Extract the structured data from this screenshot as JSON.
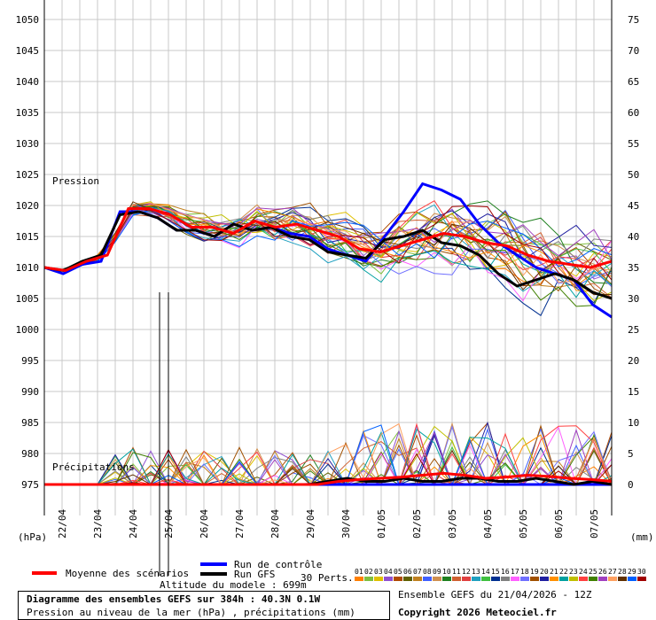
{
  "chart_data": {
    "type": "line",
    "title": "Diagramme des ensembles GEFS sur 384h : 40.3N 0.1W",
    "subtitle": "Pression au niveau de la mer (hPa) , précipitations (mm)",
    "ylabel_left": "(hPa)",
    "ylabel_right": "(mm)",
    "pressure_label": "Pression",
    "precip_label": "Précipitations",
    "y_left_ticks": [
      1050,
      1045,
      1040,
      1035,
      1030,
      1025,
      1020,
      1015,
      1010,
      1005,
      1000,
      995,
      990,
      985,
      980,
      975
    ],
    "y_right_ticks": [
      75,
      70,
      65,
      60,
      55,
      50,
      45,
      40,
      35,
      30,
      25,
      20,
      15,
      10,
      5,
      0
    ],
    "ylim": [
      970,
      1050
    ],
    "x_labels": [
      "22/04",
      "23/04",
      "24/04",
      "25/04",
      "26/04",
      "27/04",
      "28/04",
      "29/04",
      "30/04",
      "01/05",
      "02/05",
      "03/05",
      "04/05",
      "05/05",
      "06/05",
      "07/05"
    ],
    "x_range_hours": [
      0,
      384
    ],
    "grid": true,
    "marker_lines_hours": [
      78,
      84
    ],
    "series": [
      {
        "name": "Moyenne des scénarios",
        "color": "#ff0000",
        "pressure": [
          1010,
          1009.5,
          1011,
          1012,
          1019.5,
          1019.5,
          1018.5,
          1016.5,
          1016.5,
          1015.5,
          1017.5,
          1016.5,
          1017,
          1016,
          1015,
          1013,
          1012.5,
          1013.5,
          1014.5,
          1015.5,
          1015,
          1014,
          1013.5,
          1012,
          1011,
          1010.5,
          1010,
          1011
        ],
        "precip": [
          0,
          0,
          0,
          0,
          0,
          0,
          0,
          0,
          0,
          0,
          0,
          0,
          0,
          0,
          0.5,
          0.8,
          1,
          1.2,
          1.5,
          1.8,
          1.5,
          1,
          1.2,
          1.5,
          1.3,
          1,
          0.8,
          0.5
        ]
      },
      {
        "name": "Run de contrôle",
        "color": "#0000ff",
        "pressure": [
          1010,
          1009,
          1010.5,
          1011,
          1019,
          1019,
          1018,
          1016,
          1016,
          1015,
          1017,
          1016,
          1016.5,
          1015.5,
          1015,
          1013,
          1012,
          1011,
          1015,
          1019,
          1023.5,
          1022.5,
          1021,
          1017,
          1014,
          1012,
          1010,
          1009,
          1008,
          1004,
          1002
        ],
        "precip": [
          0,
          0,
          0,
          0,
          0,
          0,
          0,
          0,
          0,
          0,
          0,
          0,
          0,
          0,
          0,
          0,
          0,
          0,
          0,
          0,
          0,
          0,
          0,
          0,
          0,
          0,
          0,
          0,
          0,
          0,
          0
        ]
      },
      {
        "name": "Run GFS",
        "color": "#000000",
        "pressure": [
          1010,
          1009.5,
          1011,
          1012,
          1018.5,
          1019,
          1018,
          1016,
          1016,
          1015,
          1017,
          1016,
          1016.5,
          1015,
          1014.5,
          1012.5,
          1012,
          1011.5,
          1014.5,
          1015,
          1016,
          1014,
          1013.5,
          1012,
          1009,
          1007,
          1008,
          1009,
          1008,
          1006,
          1005
        ],
        "precip": [
          0,
          0,
          0,
          0,
          0,
          0,
          0,
          0,
          0,
          0,
          0,
          0,
          0,
          0,
          0,
          0.5,
          1,
          0.5,
          0.5,
          1,
          0.5,
          0.5,
          1,
          1,
          0.5,
          0.5,
          1,
          0.5,
          0,
          0.5,
          0
        ]
      }
    ],
    "perturbation_count": 30
  },
  "legend": {
    "mean_label": "Moyenne des scénarios",
    "control_label": "Run de contrôle",
    "gfs_label": "Run GFS",
    "perts_label": "30 Perts.",
    "altitude_label": "Altitude du modele : 699m",
    "pert_numbers": [
      "01",
      "02",
      "03",
      "04",
      "05",
      "06",
      "07",
      "08",
      "09",
      "10",
      "11",
      "12",
      "13",
      "14",
      "15",
      "16",
      "17",
      "18",
      "19",
      "20",
      "21",
      "22",
      "23",
      "24",
      "25",
      "26",
      "27",
      "28",
      "29",
      "30"
    ],
    "pert_colors": [
      "#ff7f00",
      "#7fbf3f",
      "#e0c000",
      "#9050d0",
      "#b04a00",
      "#606000",
      "#c08020",
      "#4060ff",
      "#d09050",
      "#208020",
      "#d06030",
      "#e04040",
      "#20a0c0",
      "#40c040",
      "#003090",
      "#808080",
      "#ff60ff",
      "#7070ff",
      "#a05000",
      "#2020a0",
      "#ff9000",
      "#00a0a0",
      "#c0c000",
      "#ff4040",
      "#408000",
      "#a040c0",
      "#ffa060",
      "#603000",
      "#0060ff",
      "#a00000"
    ]
  },
  "info": {
    "ensemble_label": "Ensemble GEFS du 21/04/2026 - 12Z",
    "copyright": "Copyright 2026 Meteociel.fr"
  }
}
